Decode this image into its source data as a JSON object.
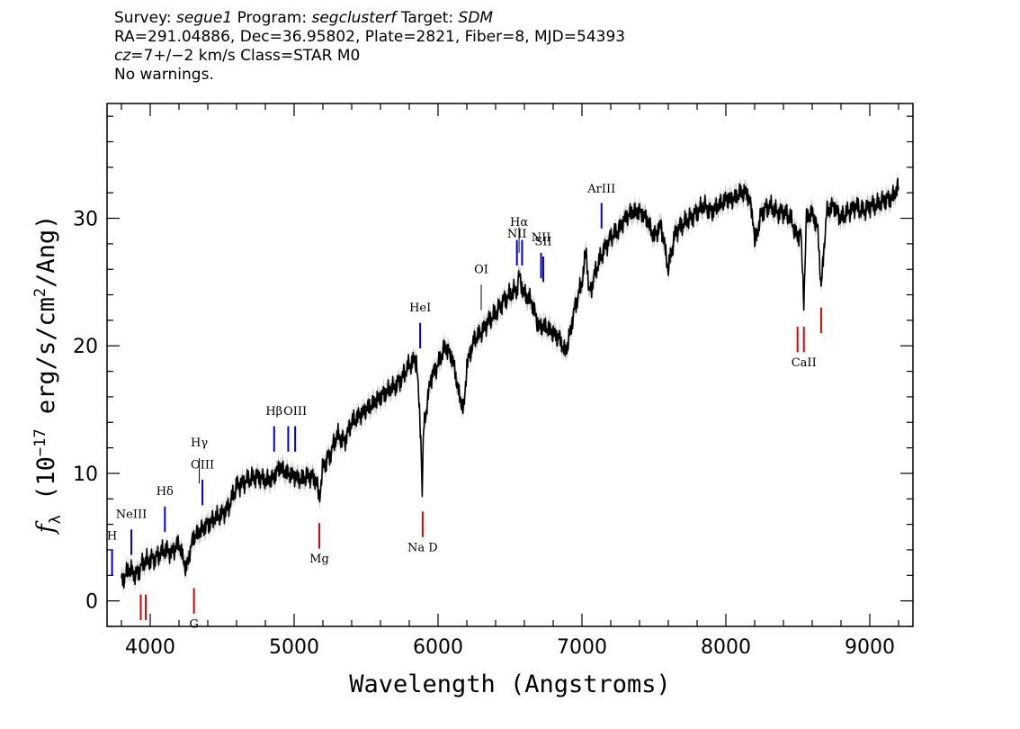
{
  "header": {
    "survey_label": "Survey:",
    "survey": "segue1",
    "program_label": "Program:",
    "program": "segclusterf",
    "target_label": "Target:",
    "target": "SDM",
    "coords": "RA=291.04886, Dec=36.95802, Plate=2821, Fiber=8, MJD=54393",
    "cz_prefix": "cz",
    "cz_rest": "=7+/−2 km/s Class=STAR M0",
    "warnings": "No warnings."
  },
  "chart_data": {
    "type": "line",
    "title": "",
    "xlabel": "Wavelength (Angstroms)",
    "ylabel_parts": [
      "f",
      "λ",
      " (10",
      "−17",
      " erg/s/cm",
      "2",
      "/Ang)"
    ],
    "xlim": [
      3700,
      9300
    ],
    "ylim": [
      -2,
      39
    ],
    "x_ticks": [
      4000,
      5000,
      6000,
      7000,
      8000,
      9000
    ],
    "y_ticks": [
      0,
      10,
      20,
      30
    ],
    "colors": {
      "spectrum": "#000000",
      "error": "#b0b0b0",
      "emission": "#0000cc",
      "absorption": "#dd0000",
      "uncertain": "#000000"
    },
    "series": [
      {
        "x": [
          3800,
          3850,
          3900,
          3950,
          4000,
          4050,
          4100,
          4150,
          4200,
          4250,
          4300,
          4350,
          4400,
          4450,
          4500,
          4550,
          4600,
          4650,
          4700,
          4750,
          4800,
          4850,
          4900,
          4950,
          5000,
          5050,
          5100,
          5150,
          5175,
          5200,
          5250,
          5300,
          5350,
          5400,
          5450,
          5500,
          5550,
          5600,
          5650,
          5700,
          5750,
          5800,
          5850,
          5880,
          5890,
          5900,
          5950,
          6000,
          6050,
          6100,
          6150,
          6180,
          6200,
          6250,
          6300,
          6350,
          6400,
          6450,
          6500,
          6550,
          6563,
          6600,
          6650,
          6700,
          6750,
          6800,
          6850,
          6880,
          6900,
          6950,
          7000,
          7030,
          7050,
          7100,
          7150,
          7200,
          7250,
          7300,
          7350,
          7400,
          7450,
          7500,
          7550,
          7600,
          7650,
          7700,
          7750,
          7800,
          7850,
          7900,
          7950,
          8000,
          8050,
          8100,
          8150,
          8190,
          8200,
          8250,
          8300,
          8350,
          8400,
          8450,
          8498,
          8520,
          8542,
          8560,
          8600,
          8640,
          8662,
          8700,
          8750,
          8800,
          8850,
          8900,
          8950,
          9000,
          9050,
          9100,
          9150,
          9200
        ],
        "y": [
          1.5,
          2.5,
          2.0,
          3.0,
          3.2,
          3.5,
          4.0,
          3.8,
          4.5,
          2.5,
          5.0,
          5.5,
          6.0,
          6.5,
          6.8,
          7.5,
          9.0,
          9.3,
          9.6,
          9.8,
          9.4,
          9.6,
          10.5,
          10.0,
          9.8,
          9.5,
          9.8,
          9.6,
          8.0,
          10.5,
          11.5,
          13.0,
          12.5,
          14.0,
          14.5,
          15.0,
          15.5,
          16.0,
          16.5,
          16.8,
          17.5,
          18.5,
          19.0,
          13.0,
          8.5,
          13.5,
          17.5,
          18.5,
          20.0,
          19.0,
          16.0,
          15.0,
          18.5,
          20.5,
          21.0,
          22.0,
          22.5,
          23.5,
          24.0,
          24.5,
          25.5,
          24.0,
          23.5,
          21.5,
          21.5,
          21.0,
          20.5,
          19.5,
          20.0,
          23.0,
          25.0,
          27.5,
          24.0,
          26.0,
          27.5,
          28.5,
          29.0,
          30.0,
          30.5,
          30.5,
          30.0,
          28.5,
          29.5,
          26.0,
          29.0,
          29.5,
          30.0,
          30.5,
          31.0,
          30.5,
          31.0,
          31.5,
          31.5,
          32.0,
          32.0,
          30.0,
          28.0,
          30.5,
          31.0,
          30.5,
          30.5,
          30.0,
          28.5,
          29.0,
          23.5,
          30.0,
          30.5,
          29.0,
          24.5,
          30.5,
          31.0,
          30.0,
          30.5,
          31.0,
          30.5,
          31.0,
          31.0,
          31.5,
          31.5,
          32.5
        ]
      }
    ],
    "lines": [
      {
        "label": "H",
        "x": 3735,
        "y0": 2.0,
        "y1": 4.0,
        "kind": "emission",
        "ly": 4.8
      },
      {
        "label": "NeIII",
        "x": 3869,
        "y0": 3.6,
        "y1": 5.6,
        "kind": "emission",
        "ly": 6.5
      },
      {
        "label": "Hδ",
        "x": 4102,
        "y0": 5.4,
        "y1": 7.4,
        "kind": "emission",
        "ly": 8.3
      },
      {
        "label": "Hγ",
        "x": 4341,
        "y0": 9.2,
        "y1": 11.2,
        "kind": "uncertain",
        "ly": 12.1
      },
      {
        "label": "OIII",
        "x": 4363,
        "y0": 7.5,
        "y1": 9.5,
        "kind": "emission",
        "ly": 10.4
      },
      {
        "label": "Hβ",
        "x": 4861,
        "y0": 11.7,
        "y1": 13.7,
        "kind": "emission",
        "ly": 14.6
      },
      {
        "label": "",
        "x": 4959,
        "y0": 11.7,
        "y1": 13.7,
        "kind": "emission",
        "ly": 14.6
      },
      {
        "label": "OIII",
        "x": 5007,
        "y0": 11.7,
        "y1": 13.7,
        "kind": "emission",
        "ly": 14.6
      },
      {
        "label": "HeI",
        "x": 5876,
        "y0": 19.8,
        "y1": 21.8,
        "kind": "emission",
        "ly": 22.7
      },
      {
        "label": "OI",
        "x": 6300,
        "y0": 22.8,
        "y1": 24.8,
        "kind": "uncertain",
        "ly": 25.7
      },
      {
        "label": "NII",
        "x": 6548,
        "y0": 26.3,
        "y1": 28.3,
        "kind": "emission",
        "ly": 28.5
      },
      {
        "label": "Hα",
        "x": 6563,
        "y0": 27.3,
        "y1": 29.3,
        "kind": "uncertain",
        "ly": 29.4
      },
      {
        "label": "",
        "x": 6584,
        "y0": 26.3,
        "y1": 28.3,
        "kind": "emission",
        "ly": 28.5
      },
      {
        "label": "NII",
        "x": 6716,
        "y0": 25.3,
        "y1": 27.3,
        "kind": "emission",
        "ly": 28.2
      },
      {
        "label": "SII",
        "x": 6731,
        "y0": 25.0,
        "y1": 27.0,
        "kind": "emission",
        "ly": 27.9
      },
      {
        "label": "ArIII",
        "x": 7136,
        "y0": 29.2,
        "y1": 31.2,
        "kind": "emission",
        "ly": 32.0
      },
      {
        "label": "",
        "x": 3934,
        "y0": -1.5,
        "y1": 0.5,
        "kind": "absorption",
        "ly": -2.6
      },
      {
        "label": "",
        "x": 3969,
        "y0": -1.5,
        "y1": 0.5,
        "kind": "absorption",
        "ly": -2.6
      },
      {
        "label": "G",
        "x": 4304,
        "y0": -1.0,
        "y1": 1.0,
        "kind": "absorption",
        "ly": -2.1
      },
      {
        "label": "Mg",
        "x": 5175,
        "y0": 4.1,
        "y1": 6.1,
        "kind": "absorption",
        "ly": 3.0
      },
      {
        "label": "Na D",
        "x": 5893,
        "y0": 5.0,
        "y1": 7.0,
        "kind": "absorption",
        "ly": 3.9
      },
      {
        "label": "",
        "x": 8498,
        "y0": 19.5,
        "y1": 21.5,
        "kind": "absorption",
        "ly": 18.4
      },
      {
        "label": "CaII",
        "x": 8542,
        "y0": 19.5,
        "y1": 21.5,
        "kind": "absorption",
        "ly": 18.4
      },
      {
        "label": "",
        "x": 8662,
        "y0": 21.0,
        "y1": 23.0,
        "kind": "absorption",
        "ly": 19.9
      }
    ]
  }
}
